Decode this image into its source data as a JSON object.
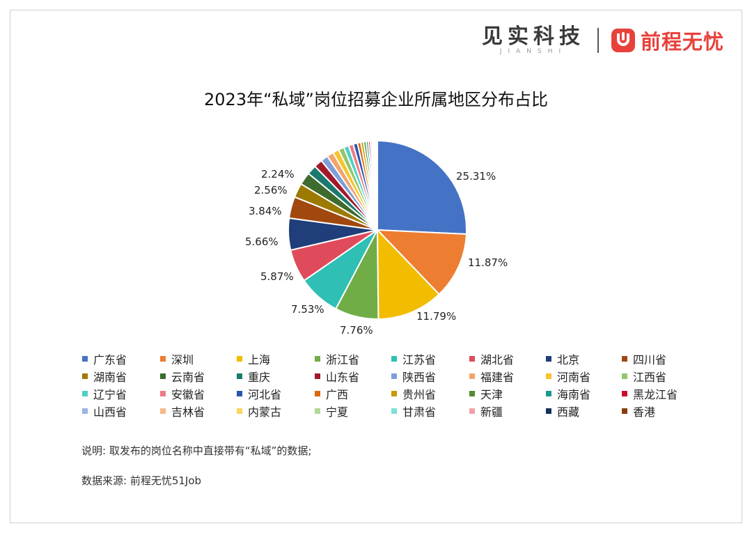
{
  "brand": {
    "jianshi": "见实科技",
    "jianshi_sub": "JIANSHI",
    "qcwy": "前程无忧"
  },
  "chart_data": {
    "type": "pie",
    "title": "2023年“私域”岗位招募企业所属地区分布占比",
    "legend_position": "bottom",
    "slices": [
      {
        "name": "广东省",
        "value": 25.31,
        "label": "25.31%",
        "color": "#4472C4"
      },
      {
        "name": "深圳",
        "value": 11.87,
        "label": "11.87%",
        "color": "#ED7D31"
      },
      {
        "name": "上海",
        "value": 11.79,
        "label": "11.79%",
        "color": "#F2BC00"
      },
      {
        "name": "浙江省",
        "value": 7.76,
        "label": "7.76%",
        "color": "#70AD47"
      },
      {
        "name": "江苏省",
        "value": 7.53,
        "label": "7.53%",
        "color": "#2FBFB4"
      },
      {
        "name": "湖北省",
        "value": 5.87,
        "label": "5.87%",
        "color": "#E04B5B"
      },
      {
        "name": "北京",
        "value": 5.66,
        "label": "5.66%",
        "color": "#1F3E7A"
      },
      {
        "name": "四川省",
        "value": 3.84,
        "label": "3.84%",
        "color": "#A0480E"
      },
      {
        "name": "湖南省",
        "value": 2.56,
        "label": "2.56%",
        "color": "#9C7A00"
      },
      {
        "name": "云南省",
        "value": 2.24,
        "label": "2.24%",
        "color": "#3E6B2E"
      },
      {
        "name": "重庆",
        "value": 1.7,
        "label": "",
        "color": "#1A7A6E"
      },
      {
        "name": "山东省",
        "value": 1.5,
        "label": "",
        "color": "#A11A2B"
      },
      {
        "name": "陕西省",
        "value": 1.3,
        "label": "",
        "color": "#7F9FD8"
      },
      {
        "name": "福建省",
        "value": 1.2,
        "label": "",
        "color": "#F4A46A"
      },
      {
        "name": "河南省",
        "value": 1.1,
        "label": "",
        "color": "#F7C42E"
      },
      {
        "name": "江西省",
        "value": 1.0,
        "label": "",
        "color": "#93C66E"
      },
      {
        "name": "辽宁省",
        "value": 0.9,
        "label": "",
        "color": "#4DD1C6"
      },
      {
        "name": "安徽省",
        "value": 0.85,
        "label": "",
        "color": "#EE7B87"
      },
      {
        "name": "河北省",
        "value": 0.75,
        "label": "",
        "color": "#2A55B0"
      },
      {
        "name": "广西",
        "value": 0.6,
        "label": "",
        "color": "#D9690E"
      },
      {
        "name": "贵州省",
        "value": 0.5,
        "label": "",
        "color": "#C79A00"
      },
      {
        "name": "天津",
        "value": 0.45,
        "label": "",
        "color": "#558B2F"
      },
      {
        "name": "海南省",
        "value": 0.4,
        "label": "",
        "color": "#1C9A8C"
      },
      {
        "name": "黑龙江省",
        "value": 0.35,
        "label": "",
        "color": "#C8102E"
      },
      {
        "name": "山西省",
        "value": 0.3,
        "label": "",
        "color": "#9DB4E6"
      },
      {
        "name": "吉林省",
        "value": 0.25,
        "label": "",
        "color": "#F6B889"
      },
      {
        "name": "内蒙古",
        "value": 0.2,
        "label": "",
        "color": "#FAD65E"
      },
      {
        "name": "宁夏",
        "value": 0.15,
        "label": "",
        "color": "#B2D895"
      },
      {
        "name": "甘肃省",
        "value": 0.12,
        "label": "",
        "color": "#7FE0D8"
      },
      {
        "name": "新疆",
        "value": 0.1,
        "label": "",
        "color": "#F2A0A8"
      },
      {
        "name": "西藏",
        "value": 0.08,
        "label": "",
        "color": "#14305E"
      },
      {
        "name": "香港",
        "value": 0.05,
        "label": "",
        "color": "#8A3D0B"
      }
    ]
  },
  "note": "说明: 取发布的岗位名称中直接带有“私域”的数据;",
  "source": "数据来源: 前程无忧51Job"
}
